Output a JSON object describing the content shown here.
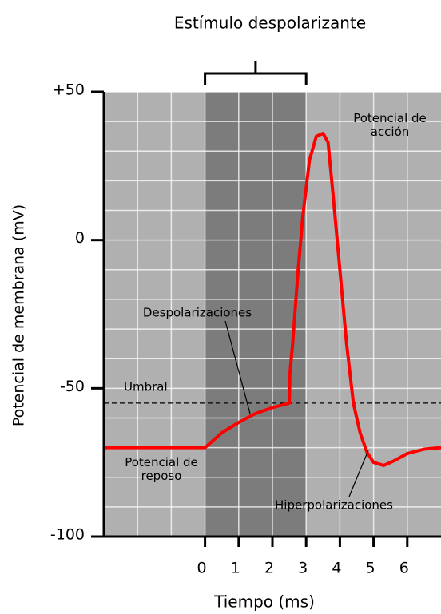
{
  "chart_data": {
    "type": "line",
    "title": "Estímulo despolarizante",
    "xlabel": "Tiempo (ms)",
    "ylabel": "Potencial de membrana (mV)",
    "xlim": [
      -3,
      7
    ],
    "ylim": [
      -100,
      50
    ],
    "xticks": [
      0,
      1,
      2,
      3,
      4,
      5,
      6
    ],
    "yticks": [
      {
        "value": 50,
        "label": "+50"
      },
      0,
      -50,
      -100
    ],
    "grid": true,
    "stimulus": [
      0,
      3
    ],
    "threshold": -55,
    "color": "#ff0000",
    "x": [
      -3,
      0,
      0.5,
      1,
      1.5,
      2,
      2.5,
      2.52,
      2.6,
      2.75,
      2.9,
      3.1,
      3.3,
      3.5,
      3.65,
      3.8,
      4,
      4.2,
      4.4,
      4.6,
      4.8,
      5,
      5.3,
      5.6,
      6,
      6.5,
      7
    ],
    "values": [
      -70,
      -70,
      -65,
      -61.5,
      -58.5,
      -56.5,
      -55,
      -45,
      -35,
      -12,
      8,
      27,
      35,
      36,
      33,
      15,
      -10,
      -35,
      -55,
      -65,
      -71.5,
      -75,
      -76,
      -74.5,
      -72,
      -70.5,
      -70
    ],
    "annotations": [
      {
        "text": "Potencial de acción",
        "lines": [
          "Potencial de",
          "acción"
        ]
      },
      {
        "text": "Despolarizaciones"
      },
      {
        "text": "Umbral"
      },
      {
        "text": "Potencial de reposo",
        "lines": [
          "Potencial de",
          "reposo"
        ]
      },
      {
        "text": "Hiperpolarizaciones"
      }
    ]
  }
}
